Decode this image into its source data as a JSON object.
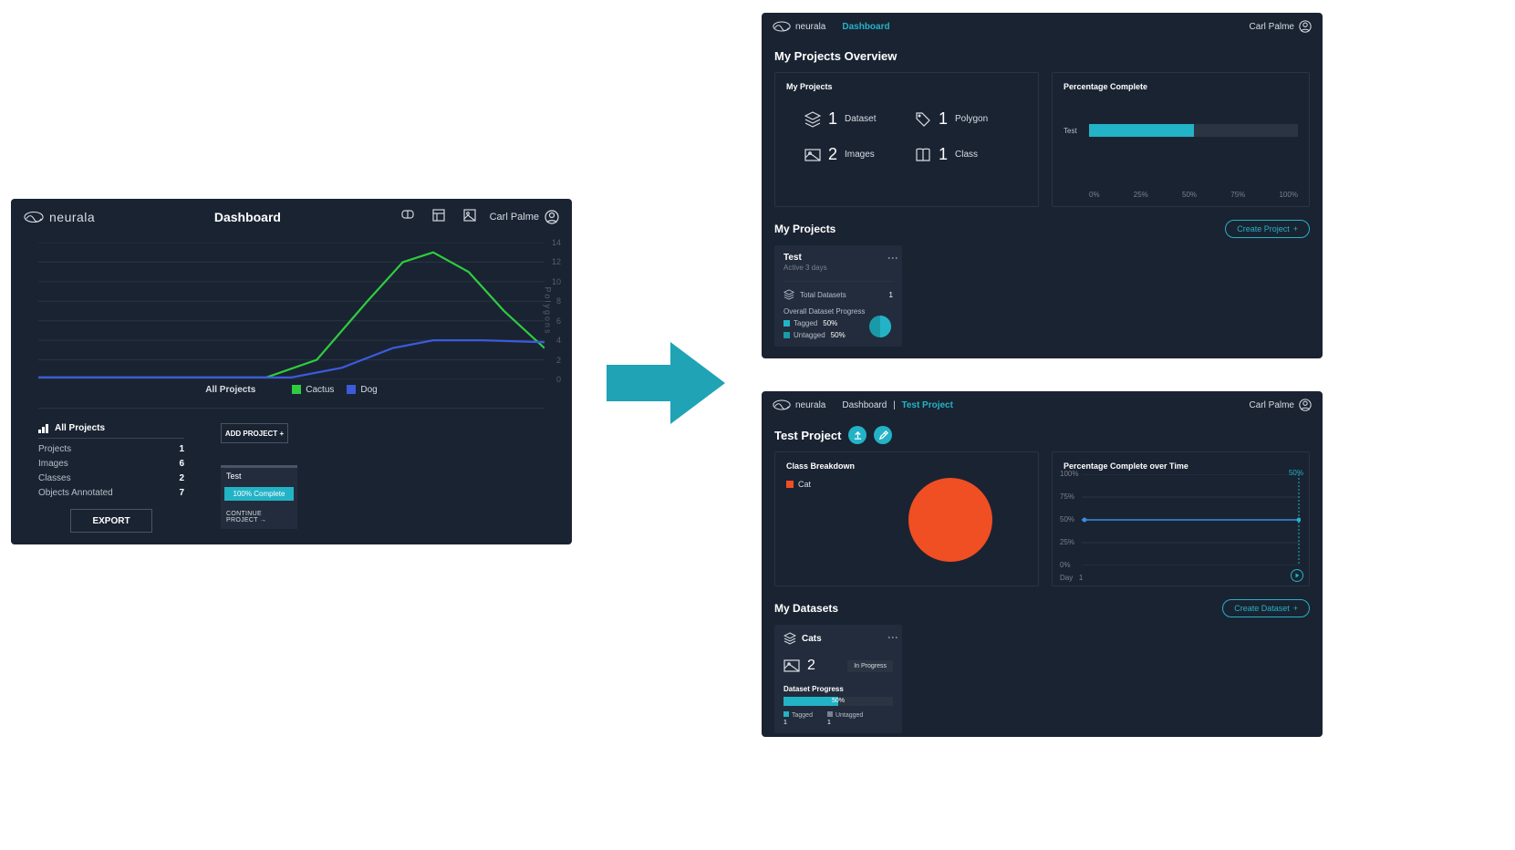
{
  "colors": {
    "panel_bg": "#1a2332",
    "card_bg": "#222c3c",
    "border": "#2a3442",
    "accent": "#23b3c6",
    "accent2": "#1a9aa8",
    "orange": "#f04e23",
    "green": "#2ecc40",
    "blue": "#3b5bdb",
    "text_muted": "#7a828e",
    "arrow": "#1fa3b5"
  },
  "panelA": {
    "logo": "neurala",
    "title": "Dashboard",
    "user": "Carl Palme",
    "chart": {
      "y_label": "Polygons",
      "y_ticks": [
        0,
        2,
        4,
        6,
        8,
        10,
        12,
        14
      ],
      "ylim": [
        0,
        14
      ],
      "grid_color": "#2a3442",
      "series": [
        {
          "name": "Cactus",
          "color": "#2ecc40",
          "points": [
            [
              0,
              0.2
            ],
            [
              0.45,
              0.2
            ],
            [
              0.55,
              2
            ],
            [
              0.65,
              8
            ],
            [
              0.72,
              12
            ],
            [
              0.78,
              13
            ],
            [
              0.85,
              11
            ],
            [
              0.92,
              7
            ],
            [
              1.0,
              3.2
            ]
          ]
        },
        {
          "name": "Dog",
          "color": "#3b5bdb",
          "points": [
            [
              0,
              0.2
            ],
            [
              0.5,
              0.2
            ],
            [
              0.6,
              1.2
            ],
            [
              0.7,
              3.2
            ],
            [
              0.78,
              4
            ],
            [
              0.88,
              4
            ],
            [
              1.0,
              3.8
            ]
          ]
        }
      ],
      "legend_title": "All Projects"
    },
    "all_projects_header": "All Projects",
    "stats": [
      {
        "label": "Projects",
        "value": "1"
      },
      {
        "label": "Images",
        "value": "6"
      },
      {
        "label": "Classes",
        "value": "2"
      },
      {
        "label": "Objects Annotated",
        "value": "7"
      }
    ],
    "export_btn": "EXPORT",
    "add_btn": "ADD PROJECT +",
    "card": {
      "title": "Test",
      "bar_label": "100% Complete",
      "bar_color": "#23b3c6",
      "continue": "CONTINUE PROJECT →"
    }
  },
  "panelB": {
    "logo": "neurala",
    "nav": "Dashboard",
    "user": "Carl Palme",
    "h1": "My Projects Overview",
    "myprojects_title": "My Projects",
    "stats": [
      {
        "icon": "layers",
        "num": "1",
        "label": "Dataset"
      },
      {
        "icon": "tag",
        "num": "1",
        "label": "Polygon"
      },
      {
        "icon": "image",
        "num": "2",
        "label": "Images"
      },
      {
        "icon": "book",
        "num": "1",
        "label": "Class"
      }
    ],
    "pct_title": "Percentage Complete",
    "pct_bar": {
      "category": "Test",
      "value": 50,
      "color": "#23b3c6"
    },
    "pct_xticks": [
      "0%",
      "25%",
      "50%",
      "75%",
      "100%"
    ],
    "section2": "My Projects",
    "create_btn": "Create Project",
    "card": {
      "title": "Test",
      "subtitle": "Active 3 days",
      "total_datasets_label": "Total Datasets",
      "total_datasets_value": "1",
      "progress_label": "Overall Dataset Progress",
      "tagged": {
        "label": "Tagged",
        "value": "50%",
        "color": "#23b3c6"
      },
      "untagged": {
        "label": "Untagged",
        "value": "50%",
        "color": "#1a9aa8"
      }
    }
  },
  "panelC": {
    "logo": "neurala",
    "breadcrumb": {
      "a": "Dashboard",
      "sep": "|",
      "b": "Test Project"
    },
    "user": "Carl Palme",
    "h1": "Test Project",
    "class_title": "Class Breakdown",
    "class_legend": {
      "label": "Cat",
      "color": "#f04e23"
    },
    "pie": {
      "value": 100,
      "color": "#f04e23"
    },
    "pct_title": "Percentage Complete over Time",
    "pct_chart": {
      "yticks": [
        "0%",
        "25%",
        "50%",
        "75%",
        "100%"
      ],
      "ylim": [
        0,
        100
      ],
      "line_color": "#3b8bdb",
      "value": 50,
      "end_label": "50%",
      "x_label": "Day",
      "x_tick": "1"
    },
    "section2": "My Datasets",
    "create_btn": "Create Dataset",
    "card": {
      "title": "Cats",
      "img_count": "2",
      "badge": "In Progress",
      "progress_label": "Dataset Progress",
      "progress_pct": 50,
      "progress_text": "50%",
      "tagged": {
        "label": "Tagged",
        "value": "1",
        "color": "#23b3c6"
      },
      "untagged": {
        "label": "Untagged",
        "value": "1",
        "color": "#7a828e"
      }
    }
  }
}
